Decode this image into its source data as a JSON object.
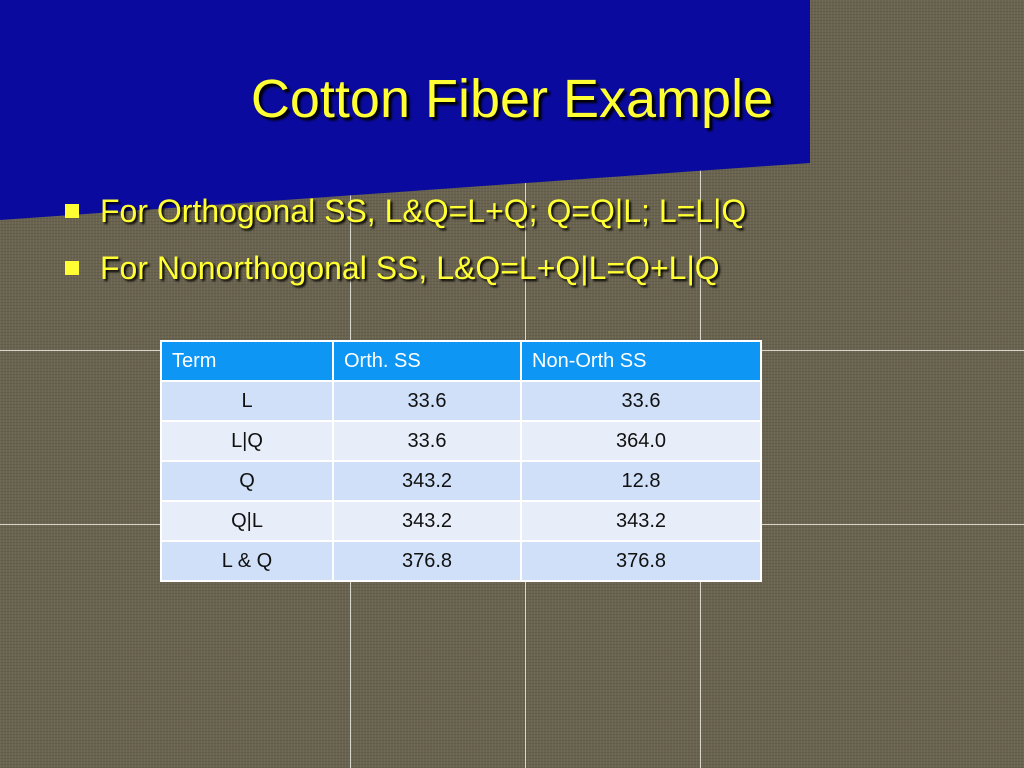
{
  "header": {
    "title": "Cotton Fiber Example"
  },
  "bullets": [
    "For Orthogonal SS, L&Q=L+Q; Q=Q|L; L=L|Q",
    "For Nonorthogonal SS, L&Q=L+Q|L=Q+L|Q"
  ],
  "table": {
    "columns": [
      "Term",
      "Orth. SS",
      "Non-Orth SS"
    ],
    "rows": [
      [
        "L",
        "33.6",
        "33.6"
      ],
      [
        "L|Q",
        "33.6",
        "364.0"
      ],
      [
        "Q",
        "343.2",
        "12.8"
      ],
      [
        "Q|L",
        "343.2",
        "343.2"
      ],
      [
        "L & Q",
        "376.8",
        "376.8"
      ]
    ]
  }
}
